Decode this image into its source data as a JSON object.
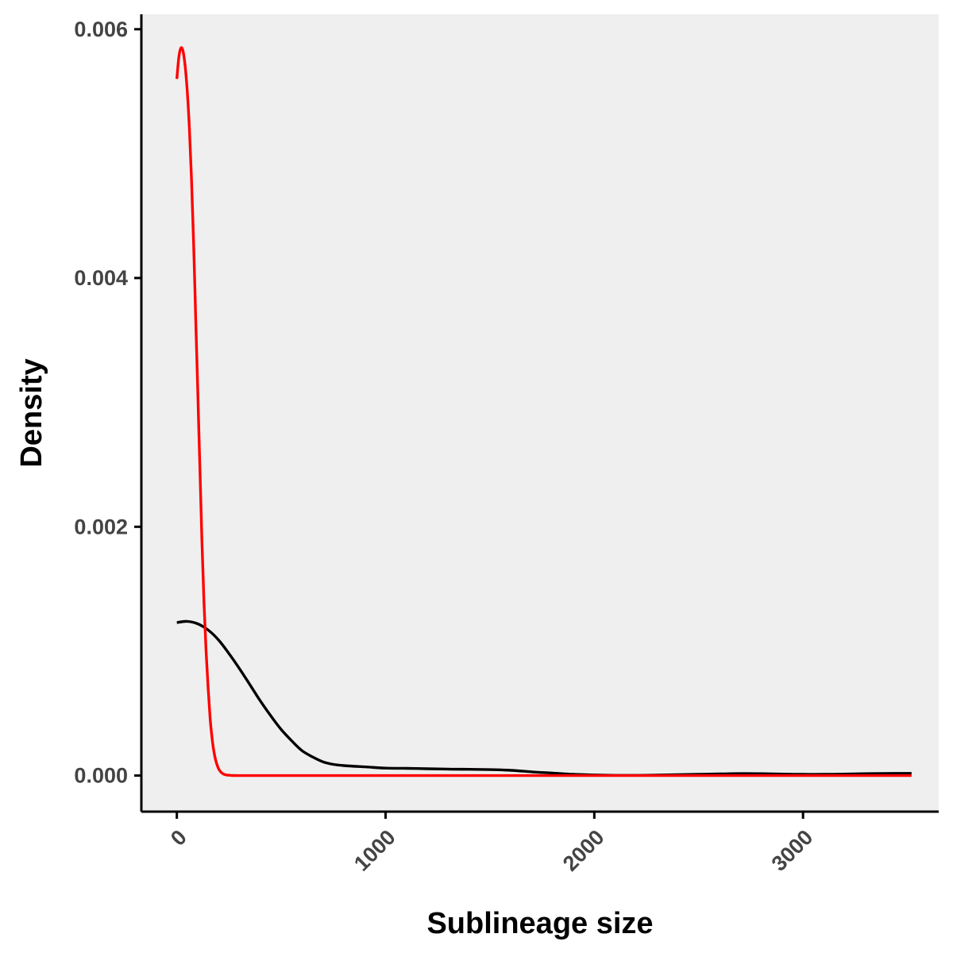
{
  "chart_data": {
    "type": "line",
    "xlabel": "Sublineage size",
    "ylabel": "Density",
    "xlim": [
      -170,
      3650
    ],
    "ylim": [
      -0.00029,
      0.00612
    ],
    "x_ticks": [
      0,
      1000,
      2000,
      3000
    ],
    "x_tick_labels": [
      "0",
      "1000",
      "2000",
      "3000"
    ],
    "y_ticks": [
      0,
      0.002,
      0.004,
      0.006
    ],
    "y_tick_labels": [
      "0.000",
      "0.002",
      "0.004",
      "0.006"
    ],
    "grid": false,
    "legend": "none",
    "background_color": "#efefef",
    "series": [
      {
        "color": "#000000",
        "x": [
          0,
          50,
          100,
          150,
          200,
          250,
          300,
          350,
          400,
          450,
          500,
          550,
          600,
          650,
          700,
          750,
          800,
          900,
          1000,
          1100,
          1200,
          1300,
          1400,
          1500,
          1600,
          1700,
          1800,
          1900,
          2000,
          2100,
          2200,
          2300,
          2400,
          2500,
          2600,
          2700,
          2800,
          2900,
          3000,
          3100,
          3200,
          3300,
          3400,
          3520
        ],
        "y": [
          0.00123,
          0.00124,
          0.00122,
          0.00117,
          0.00109,
          0.00098,
          0.00086,
          0.00073,
          0.0006,
          0.00048,
          0.00037,
          0.00028,
          0.0002,
          0.00015,
          0.00011,
          9e-05,
          8e-05,
          7e-05,
          6e-05,
          5.8e-05,
          5.5e-05,
          5.2e-05,
          5e-05,
          4.8e-05,
          4.2e-05,
          3e-05,
          2e-05,
          1e-05,
          5e-06,
          2e-06,
          2e-06,
          4e-06,
          7e-06,
          1e-05,
          1.3e-05,
          1.6e-05,
          1.5e-05,
          1.2e-05,
          1e-05,
          1e-05,
          1.2e-05,
          1.5e-05,
          1.7e-05,
          1.8e-05
        ]
      },
      {
        "color": "#ff0000",
        "x": [
          0,
          10,
          20,
          30,
          40,
          50,
          60,
          70,
          80,
          90,
          100,
          110,
          120,
          130,
          140,
          150,
          160,
          170,
          180,
          190,
          200,
          210,
          220,
          230,
          240,
          260,
          280,
          300,
          400,
          600,
          1000,
          2000,
          3000,
          3520
        ],
        "y": [
          0.0056,
          0.00578,
          0.00585,
          0.00582,
          0.0057,
          0.0055,
          0.0052,
          0.0048,
          0.0043,
          0.0037,
          0.0031,
          0.0025,
          0.0019,
          0.0014,
          0.001,
          0.0007,
          0.00045,
          0.00028,
          0.00017,
          0.0001,
          5.5e-05,
          3e-05,
          1.5e-05,
          8e-06,
          4e-06,
          1e-06,
          3e-07,
          0,
          0,
          0,
          0,
          0,
          0,
          0
        ]
      }
    ]
  }
}
